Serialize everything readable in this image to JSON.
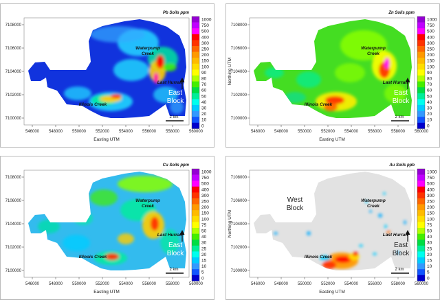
{
  "colorbar": {
    "colors": [
      "#9400d3",
      "#c000ff",
      "#ff00ff",
      "#ff0000",
      "#ff3300",
      "#ff6600",
      "#ff9900",
      "#ffbb00",
      "#ffdd00",
      "#ffff00",
      "#b0ff00",
      "#44ee00",
      "#00dd44",
      "#00ee99",
      "#00ffee",
      "#00ccff",
      "#3399ff",
      "#1155ff",
      "#0000cc"
    ]
  },
  "axes": {
    "yticks": [
      "7108000",
      "7106000",
      "7104000",
      "7102000",
      "7100000"
    ],
    "xticks": [
      "546000",
      "548000",
      "550000",
      "552000",
      "554000",
      "556000",
      "558000",
      "560000"
    ],
    "xlabel": "Easting UTM",
    "ylabel": "Northing UTM"
  },
  "labels": {
    "west": [
      "West",
      "Block"
    ],
    "east": [
      "East",
      "Block"
    ],
    "waterpump": [
      "Waterpump",
      "Creek"
    ],
    "last_hurrah": "Last Hurrah",
    "illinois": "Illinois Creek",
    "scale": "2 km"
  },
  "panels": [
    {
      "id": "pb",
      "title": "Pb Soils ppm",
      "show_ylabel": false,
      "background": "#1133dd",
      "colorbar_labels": [
        "1000",
        "750",
        "500",
        "400",
        "300",
        "250",
        "200",
        "150",
        "100",
        "90",
        "80",
        "70",
        "60",
        "50",
        "40",
        "30",
        "20",
        "10",
        "0"
      ]
    },
    {
      "id": "zn",
      "title": "Zn Soils ppm",
      "show_ylabel": true,
      "background": "#44dd22",
      "colorbar_labels": [
        "1000",
        "750",
        "500",
        "400",
        "300",
        "250",
        "200",
        "150",
        "100",
        "90",
        "80",
        "70",
        "60",
        "50",
        "40",
        "30",
        "20",
        "10",
        "0"
      ]
    },
    {
      "id": "cu",
      "title": "Cu Soils ppm",
      "show_ylabel": false,
      "background": "#33bbee",
      "colorbar_labels": [
        "1000",
        "750",
        "500",
        "400",
        "300",
        "250",
        "200",
        "150",
        "100",
        "75",
        "50",
        "40",
        "30",
        "25",
        "20",
        "15",
        "10",
        "5",
        "0"
      ]
    },
    {
      "id": "au",
      "title": "Au Soils ppb",
      "show_ylabel": true,
      "background": "#e2e2e2",
      "colorbar_labels": [
        "1000",
        "750",
        "500",
        "400",
        "300",
        "250",
        "200",
        "150",
        "100",
        "75",
        "50",
        "40",
        "30",
        "25",
        "20",
        "15",
        "10",
        "5",
        "0"
      ]
    }
  ]
}
